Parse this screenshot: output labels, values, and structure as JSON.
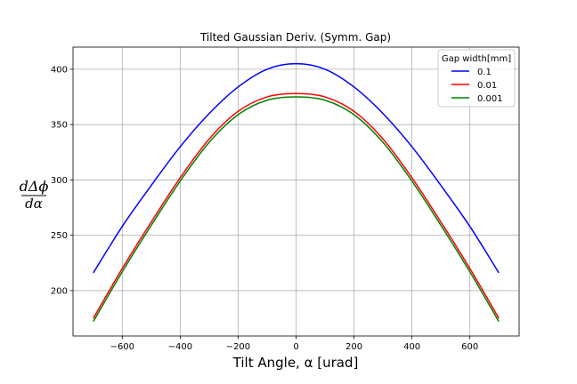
{
  "chart_data": {
    "type": "line",
    "title": "Tilted Gaussian Deriv. (Symm. Gap)",
    "xlabel": "Tilt Angle, α [urad]",
    "ylabel": "dΔϕ / dα",
    "ylabel_num": "dΔϕ",
    "ylabel_den": "dα",
    "xlim": [
      -770,
      770
    ],
    "ylim": [
      159,
      420
    ],
    "xticks": [
      -600,
      -400,
      -200,
      0,
      200,
      400,
      600
    ],
    "xtick_labels": [
      "−600",
      "−400",
      "−200",
      "0",
      "200",
      "400",
      "600"
    ],
    "yticks": [
      200,
      250,
      300,
      350,
      400
    ],
    "ytick_labels": [
      "200",
      "250",
      "300",
      "350",
      "400"
    ],
    "grid": true,
    "legend": {
      "title": "Gap width[mm]",
      "placement": "top-right"
    },
    "x": [
      -700,
      -600,
      -500,
      -400,
      -300,
      -200,
      -100,
      0,
      100,
      200,
      300,
      400,
      500,
      600,
      700
    ],
    "series": [
      {
        "name": "0.1",
        "color": "#0000ff",
        "values": [
          216,
          258,
          295,
          330,
          360,
          384,
          400,
          405,
          400,
          384,
          360,
          330,
          295,
          258,
          216
        ]
      },
      {
        "name": "0.01",
        "color": "#ff0000",
        "values": [
          175,
          220,
          262,
          302,
          337,
          362,
          375,
          378,
          375,
          362,
          337,
          302,
          262,
          220,
          175
        ]
      },
      {
        "name": "0.001",
        "color": "#008000",
        "values": [
          172,
          217,
          259,
          299,
          334,
          359,
          372,
          375,
          372,
          359,
          334,
          299,
          259,
          217,
          172
        ]
      }
    ]
  }
}
